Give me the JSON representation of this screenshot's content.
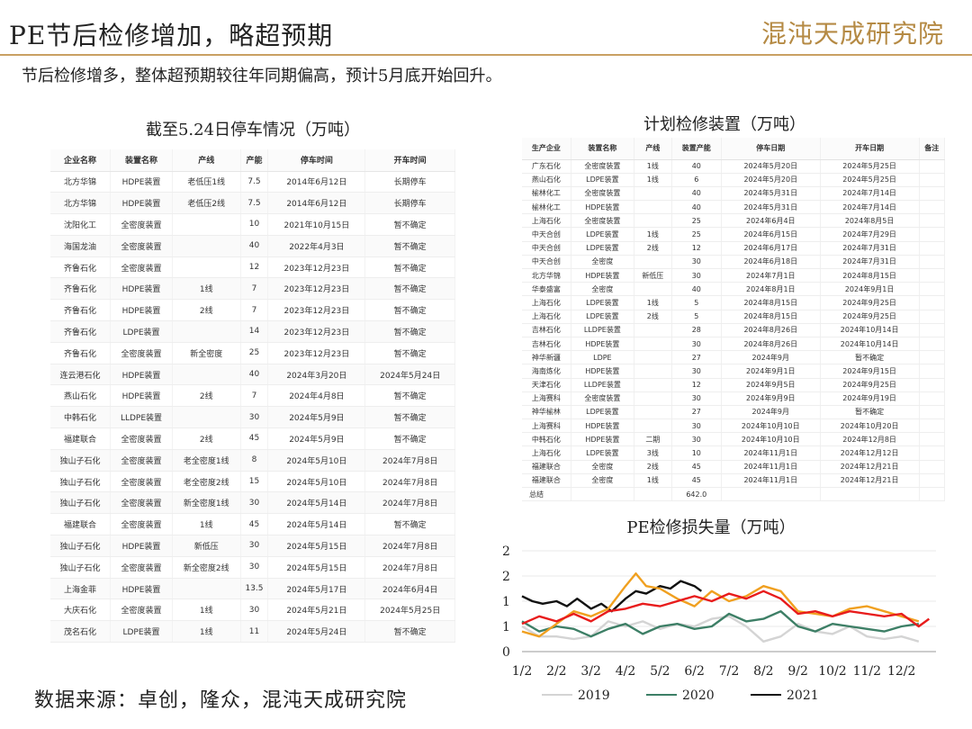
{
  "header": {
    "title": "PE节后检修增加，略超预期",
    "brand": "混沌天成研究院",
    "subtitle": "节后检修增多，整体超预期较往年同期偏高，预计5月底开始回升。"
  },
  "left_table": {
    "heading": "截至5.24日停车情况（万吨）",
    "columns": [
      "企业名称",
      "装置名称",
      "产线",
      "产能",
      "停车时间",
      "开车时间"
    ],
    "rows": [
      [
        "北方华锦",
        "HDPE装置",
        "老低压1线",
        "7.5",
        "2014年6月12日",
        "长期停车"
      ],
      [
        "北方华锦",
        "HDPE装置",
        "老低压2线",
        "7.5",
        "2014年6月12日",
        "长期停车"
      ],
      [
        "沈阳化工",
        "全密度装置",
        "",
        "10",
        "2021年10月15日",
        "暂不确定"
      ],
      [
        "海国龙油",
        "全密度装置",
        "",
        "40",
        "2022年4月3日",
        "暂不确定"
      ],
      [
        "齐鲁石化",
        "全密度装置",
        "",
        "12",
        "2023年12月23日",
        "暂不确定"
      ],
      [
        "齐鲁石化",
        "HDPE装置",
        "1线",
        "7",
        "2023年12月23日",
        "暂不确定"
      ],
      [
        "齐鲁石化",
        "HDPE装置",
        "2线",
        "7",
        "2023年12月23日",
        "暂不确定"
      ],
      [
        "齐鲁石化",
        "LDPE装置",
        "",
        "14",
        "2023年12月23日",
        "暂不确定"
      ],
      [
        "齐鲁石化",
        "全密度装置",
        "新全密度",
        "25",
        "2023年12月23日",
        "暂不确定"
      ],
      [
        "连云港石化",
        "HDPE装置",
        "",
        "40",
        "2024年3月20日",
        "2024年5月24日"
      ],
      [
        "燕山石化",
        "HDPE装置",
        "2线",
        "7",
        "2024年4月8日",
        "暂不确定"
      ],
      [
        "中韩石化",
        "LLDPE装置",
        "",
        "30",
        "2024年5月9日",
        "暂不确定"
      ],
      [
        "福建联合",
        "全密度装置",
        "2线",
        "45",
        "2024年5月9日",
        "暂不确定"
      ],
      [
        "独山子石化",
        "全密度装置",
        "老全密度1线",
        "8",
        "2024年5月10日",
        "2024年7月8日"
      ],
      [
        "独山子石化",
        "全密度装置",
        "老全密度2线",
        "15",
        "2024年5月10日",
        "2024年7月8日"
      ],
      [
        "独山子石化",
        "全密度装置",
        "新全密度1线",
        "30",
        "2024年5月14日",
        "2024年7月8日"
      ],
      [
        "福建联合",
        "全密度装置",
        "1线",
        "45",
        "2024年5月14日",
        "暂不确定"
      ],
      [
        "独山子石化",
        "HDPE装置",
        "新低压",
        "30",
        "2024年5月15日",
        "2024年7月8日"
      ],
      [
        "独山子石化",
        "全密度装置",
        "新全密度2线",
        "30",
        "2024年5月15日",
        "2024年7月8日"
      ],
      [
        "上海金菲",
        "HDPE装置",
        "",
        "13.5",
        "2024年5月17日",
        "2024年6月4日"
      ],
      [
        "大庆石化",
        "全密度装置",
        "1线",
        "30",
        "2024年5月21日",
        "2024年5月25日"
      ],
      [
        "茂名石化",
        "LDPE装置",
        "1线",
        "11",
        "2024年5月24日",
        "暂不确定"
      ]
    ]
  },
  "right_table": {
    "heading": "计划检修装置（万吨）",
    "columns": [
      "生产企业",
      "装置名称",
      "产线",
      "装置产能",
      "停车日期",
      "开车日期",
      "备注"
    ],
    "rows": [
      [
        "广东石化",
        "全密度装置",
        "1线",
        "40",
        "2024年5月20日",
        "2024年5月25日",
        ""
      ],
      [
        "燕山石化",
        "LDPE装置",
        "1线",
        "6",
        "2024年5月20日",
        "2024年5月25日",
        ""
      ],
      [
        "榆林化工",
        "全密度装置",
        "",
        "40",
        "2024年5月31日",
        "2024年7月14日",
        ""
      ],
      [
        "榆林化工",
        "HDPE装置",
        "",
        "40",
        "2024年5月31日",
        "2024年7月14日",
        ""
      ],
      [
        "上海石化",
        "全密度装置",
        "",
        "25",
        "2024年6月4日",
        "2024年8月5日",
        ""
      ],
      [
        "中天合创",
        "LDPE装置",
        "1线",
        "25",
        "2024年6月15日",
        "2024年7月29日",
        ""
      ],
      [
        "中天合创",
        "LDPE装置",
        "2线",
        "12",
        "2024年6月17日",
        "2024年7月31日",
        ""
      ],
      [
        "中天合创",
        "全密度",
        "",
        "30",
        "2024年6月18日",
        "2024年7月31日",
        ""
      ],
      [
        "北方华锦",
        "HDPE装置",
        "新低压",
        "30",
        "2024年7月1日",
        "2024年8月15日",
        ""
      ],
      [
        "华泰盛富",
        "全密度",
        "",
        "40",
        "2024年8月1日",
        "2024年9月1日",
        ""
      ],
      [
        "上海石化",
        "LDPE装置",
        "1线",
        "5",
        "2024年8月15日",
        "2024年9月25日",
        ""
      ],
      [
        "上海石化",
        "LDPE装置",
        "2线",
        "5",
        "2024年8月15日",
        "2024年9月25日",
        ""
      ],
      [
        "吉林石化",
        "LLDPE装置",
        "",
        "28",
        "2024年8月26日",
        "2024年10月14日",
        ""
      ],
      [
        "吉林石化",
        "HDPE装置",
        "",
        "30",
        "2024年8月26日",
        "2024年10月14日",
        ""
      ],
      [
        "神华新疆",
        "LDPE",
        "",
        "27",
        "2024年9月",
        "暂不确定",
        ""
      ],
      [
        "海南炼化",
        "HDPE装置",
        "",
        "30",
        "2024年9月1日",
        "2024年9月15日",
        ""
      ],
      [
        "天津石化",
        "LLDPE装置",
        "",
        "12",
        "2024年9月5日",
        "2024年9月25日",
        ""
      ],
      [
        "上海赛科",
        "全密度装置",
        "",
        "30",
        "2024年9月9日",
        "2024年9月19日",
        ""
      ],
      [
        "神华榆林",
        "LDPE装置",
        "",
        "27",
        "2024年9月",
        "暂不确定",
        ""
      ],
      [
        "上海赛科",
        "HDPE装置",
        "",
        "30",
        "2024年10月10日",
        "2024年10月20日",
        ""
      ],
      [
        "中韩石化",
        "HDPE装置",
        "二期",
        "30",
        "2024年10月10日",
        "2024年12月8日",
        ""
      ],
      [
        "上海石化",
        "LDPE装置",
        "3线",
        "10",
        "2024年11月1日",
        "2024年12月12日",
        ""
      ],
      [
        "福建联合",
        "全密度",
        "2线",
        "45",
        "2024年11月1日",
        "2024年12月21日",
        ""
      ],
      [
        "福建联合",
        "全密度",
        "1线",
        "45",
        "2024年11月1日",
        "2024年12月21日",
        ""
      ]
    ],
    "total_label": "总结",
    "total_value": "642.0"
  },
  "chart_data": {
    "type": "line",
    "title": "PE检修损失量（万吨）",
    "x_tick_labels": [
      "1/2",
      "2/2",
      "3/2",
      "4/2",
      "5/2",
      "6/2",
      "7/2",
      "8/2",
      "9/2",
      "10/2",
      "11/2",
      "12/2"
    ],
    "y_tick_labels": [
      "0",
      "1",
      "1",
      "2",
      "2"
    ],
    "ylim": [
      0,
      2.0
    ],
    "xlim": [
      1,
      13
    ],
    "series": [
      {
        "name": "2019",
        "color": "#d4d4d4",
        "values": [
          [
            1,
            0.5
          ],
          [
            1.5,
            0.3
          ],
          [
            2,
            0.3
          ],
          [
            2.5,
            0.25
          ],
          [
            3,
            0.3
          ],
          [
            3.5,
            0.6
          ],
          [
            4,
            0.5
          ],
          [
            4.5,
            0.6
          ],
          [
            5,
            0.45
          ],
          [
            5.5,
            0.55
          ],
          [
            6,
            0.5
          ],
          [
            6.5,
            0.65
          ],
          [
            7,
            0.7
          ],
          [
            7.5,
            0.5
          ],
          [
            8,
            0.2
          ],
          [
            8.5,
            0.3
          ],
          [
            9,
            0.55
          ],
          [
            9.5,
            0.4
          ],
          [
            10,
            0.35
          ],
          [
            10.5,
            0.5
          ],
          [
            11,
            0.3
          ],
          [
            11.5,
            0.25
          ],
          [
            12,
            0.3
          ],
          [
            12.5,
            0.2
          ]
        ]
      },
      {
        "name": "2020",
        "color": "#3d7f66",
        "values": [
          [
            1,
            0.6
          ],
          [
            1.5,
            0.4
          ],
          [
            2,
            0.5
          ],
          [
            2.5,
            0.45
          ],
          [
            3,
            0.3
          ],
          [
            3.5,
            0.45
          ],
          [
            4,
            0.55
          ],
          [
            4.5,
            0.35
          ],
          [
            5,
            0.5
          ],
          [
            5.5,
            0.55
          ],
          [
            6,
            0.45
          ],
          [
            6.5,
            0.5
          ],
          [
            7,
            0.75
          ],
          [
            7.5,
            0.6
          ],
          [
            8,
            0.65
          ],
          [
            8.5,
            0.8
          ],
          [
            9,
            0.5
          ],
          [
            9.5,
            0.4
          ],
          [
            10,
            0.55
          ],
          [
            10.5,
            0.5
          ],
          [
            11,
            0.45
          ],
          [
            11.5,
            0.4
          ],
          [
            12,
            0.5
          ],
          [
            12.5,
            0.55
          ]
        ]
      },
      {
        "name": "2021",
        "color": "#111111",
        "values": [
          [
            1,
            1.1
          ],
          [
            1.3,
            1.0
          ],
          [
            1.6,
            0.95
          ],
          [
            2,
            1.0
          ],
          [
            2.3,
            0.9
          ],
          [
            2.6,
            1.05
          ],
          [
            3,
            0.85
          ],
          [
            3.3,
            0.95
          ],
          [
            3.6,
            0.8
          ],
          [
            4,
            1.05
          ],
          [
            4.3,
            1.2
          ],
          [
            4.6,
            1.15
          ],
          [
            5,
            1.3
          ],
          [
            5.3,
            1.25
          ],
          [
            5.6,
            1.4
          ],
          [
            6,
            1.3
          ],
          [
            6.2,
            1.2
          ]
        ]
      },
      {
        "color": "#f0a020",
        "values": [
          [
            1,
            0.4
          ],
          [
            1.5,
            0.3
          ],
          [
            2,
            0.55
          ],
          [
            2.5,
            0.8
          ],
          [
            3,
            0.7
          ],
          [
            3.5,
            0.85
          ],
          [
            4,
            1.3
          ],
          [
            4.3,
            1.55
          ],
          [
            4.6,
            1.3
          ],
          [
            5,
            1.25
          ],
          [
            5.5,
            1.05
          ],
          [
            6,
            0.9
          ],
          [
            6.5,
            1.2
          ],
          [
            7,
            1.0
          ],
          [
            7.5,
            1.1
          ],
          [
            8,
            1.3
          ],
          [
            8.5,
            1.2
          ],
          [
            9,
            0.8
          ],
          [
            9.5,
            0.75
          ],
          [
            10,
            0.7
          ],
          [
            10.5,
            0.85
          ],
          [
            11,
            0.9
          ],
          [
            11.5,
            0.8
          ],
          [
            12,
            0.7
          ],
          [
            12.5,
            0.6
          ]
        ]
      },
      {
        "color": "#e81c1c",
        "values": [
          [
            1,
            0.55
          ],
          [
            1.5,
            0.7
          ],
          [
            2,
            0.6
          ],
          [
            2.5,
            0.75
          ],
          [
            3,
            0.6
          ],
          [
            3.5,
            0.8
          ],
          [
            4,
            0.85
          ],
          [
            4.5,
            0.95
          ],
          [
            5,
            0.9
          ],
          [
            5.5,
            1.0
          ],
          [
            6,
            1.1
          ],
          [
            6.5,
            1.0
          ],
          [
            7,
            1.15
          ],
          [
            7.5,
            1.05
          ],
          [
            8,
            1.2
          ],
          [
            8.5,
            1.05
          ],
          [
            9,
            0.75
          ],
          [
            9.5,
            0.8
          ],
          [
            10,
            0.7
          ],
          [
            10.5,
            0.8
          ],
          [
            11,
            0.75
          ],
          [
            11.5,
            0.7
          ],
          [
            12,
            0.75
          ],
          [
            12.5,
            0.5
          ],
          [
            12.8,
            0.65
          ]
        ]
      }
    ]
  },
  "footer": {
    "source": "数据来源：卓创，隆众，混沌天成研究院"
  }
}
